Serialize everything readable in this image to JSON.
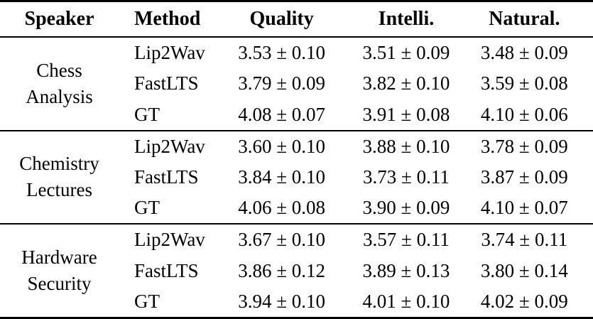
{
  "page": {
    "background": "#ffffff",
    "text_color": "#000000",
    "rule_color": "#000000"
  },
  "table": {
    "headers": {
      "speaker": "Speaker",
      "method": "Method",
      "quality": "Quality",
      "intelli": "Intelli.",
      "natural": "Natural."
    },
    "groups": [
      {
        "speaker": [
          "Chess",
          "Analysis"
        ],
        "rows": [
          {
            "method": "Lip2Wav",
            "quality": "3.53 ± 0.10",
            "intelli": "3.51 ± 0.09",
            "natural": "3.48 ± 0.09"
          },
          {
            "method": "FastLTS",
            "quality": "3.79 ± 0.09",
            "intelli": "3.82 ± 0.10",
            "natural": "3.59 ± 0.08"
          },
          {
            "method": "GT",
            "quality": "4.08 ± 0.07",
            "intelli": "3.91 ± 0.08",
            "natural": "4.10 ± 0.06"
          }
        ]
      },
      {
        "speaker": [
          "Chemistry",
          "Lectures"
        ],
        "rows": [
          {
            "method": "Lip2Wav",
            "quality": "3.60 ± 0.10",
            "intelli": "3.88 ± 0.10",
            "natural": "3.78 ± 0.09"
          },
          {
            "method": "FastLTS",
            "quality": "3.84 ± 0.10",
            "intelli": "3.73 ± 0.11",
            "natural": "3.87 ± 0.09"
          },
          {
            "method": "GT",
            "quality": "4.06 ± 0.08",
            "intelli": "3.90 ± 0.09",
            "natural": "4.10 ± 0.07"
          }
        ]
      },
      {
        "speaker": [
          "Hardware",
          "Security"
        ],
        "rows": [
          {
            "method": "Lip2Wav",
            "quality": "3.67 ± 0.10",
            "intelli": "3.57 ± 0.11",
            "natural": "3.74 ± 0.11"
          },
          {
            "method": "FastLTS",
            "quality": "3.86 ± 0.12",
            "intelli": "3.89 ± 0.13",
            "natural": "3.80 ± 0.14"
          },
          {
            "method": "GT",
            "quality": "3.94 ± 0.10",
            "intelli": "4.01 ± 0.10",
            "natural": "4.02 ± 0.09"
          }
        ]
      }
    ]
  },
  "chart_data": {
    "type": "table",
    "columns": [
      "Speaker",
      "Method",
      "Quality",
      "Intelli.",
      "Natural."
    ],
    "rows": [
      [
        "Chess Analysis",
        "Lip2Wav",
        "3.53 ± 0.10",
        "3.51 ± 0.09",
        "3.48 ± 0.09"
      ],
      [
        "Chess Analysis",
        "FastLTS",
        "3.79 ± 0.09",
        "3.82 ± 0.10",
        "3.59 ± 0.08"
      ],
      [
        "Chess Analysis",
        "GT",
        "4.08 ± 0.07",
        "3.91 ± 0.08",
        "4.10 ± 0.06"
      ],
      [
        "Chemistry Lectures",
        "Lip2Wav",
        "3.60 ± 0.10",
        "3.88 ± 0.10",
        "3.78 ± 0.09"
      ],
      [
        "Chemistry Lectures",
        "FastLTS",
        "3.84 ± 0.10",
        "3.73 ± 0.11",
        "3.87 ± 0.09"
      ],
      [
        "Chemistry Lectures",
        "GT",
        "4.06 ± 0.08",
        "3.90 ± 0.09",
        "4.10 ± 0.07"
      ],
      [
        "Hardware Security",
        "Lip2Wav",
        "3.67 ± 0.10",
        "3.57 ± 0.11",
        "3.74 ± 0.11"
      ],
      [
        "Hardware Security",
        "FastLTS",
        "3.86 ± 0.12",
        "3.89 ± 0.13",
        "3.80 ± 0.14"
      ],
      [
        "Hardware Security",
        "GT",
        "3.94 ± 0.10",
        "4.01 ± 0.10",
        "4.02 ± 0.09"
      ]
    ]
  }
}
